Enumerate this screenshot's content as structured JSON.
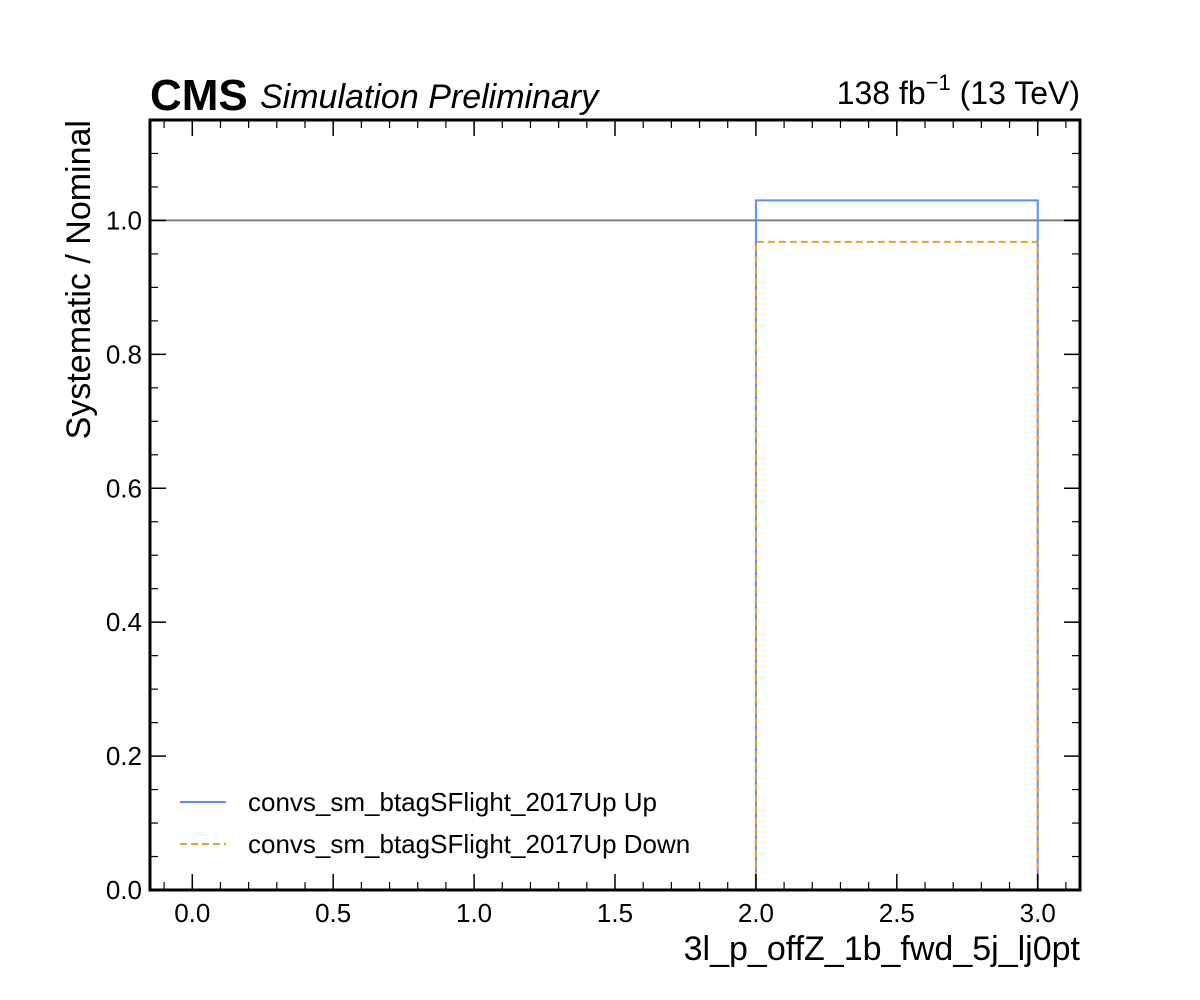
{
  "header": {
    "experiment": "CMS",
    "status": "Simulation Preliminary",
    "lumi": "138 fb",
    "lumi_exp": "−1",
    "energy": "(13 TeV)"
  },
  "chart_data": {
    "type": "line",
    "xlabel": "3l_p_offZ_1b_fwd_5j_lj0pt",
    "ylabel": "Systematic / Nominal",
    "xlim": [
      -0.15,
      3.15
    ],
    "ylim": [
      0.0,
      1.15
    ],
    "xticks": [
      "0.0",
      "0.5",
      "1.0",
      "1.5",
      "2.0",
      "2.5",
      "3.0"
    ],
    "yticks": [
      "0.0",
      "0.2",
      "0.4",
      "0.6",
      "0.8",
      "1.0"
    ],
    "reference_line": 1.0,
    "grid": false,
    "legend_position": "bottom-left",
    "series": [
      {
        "name": "convs_sm_btagSFlight_2017Up Up",
        "style": "solid",
        "color": "#5790fc",
        "bin_edges": [
          2.0,
          3.0
        ],
        "values": [
          1.03
        ]
      },
      {
        "name": "convs_sm_btagSFlight_2017Up Down",
        "style": "dashed",
        "color": "#f89c20",
        "bin_edges": [
          2.0,
          3.0
        ],
        "values": [
          0.968
        ]
      }
    ],
    "reference_color": "#808080"
  }
}
